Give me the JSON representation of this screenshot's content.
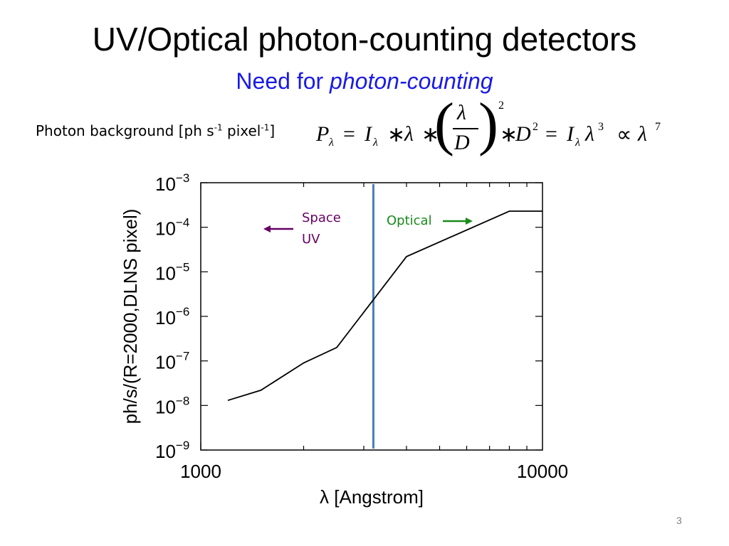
{
  "slide": {
    "title": "UV/Optical photon-counting detectors",
    "subtitle_prefix": "Need for ",
    "subtitle_emph": "photon-counting",
    "background_label": {
      "text": "Photon background [ph s",
      "sup1": "-1",
      "mid": " pixel",
      "sup2": "-1",
      "end": "]"
    },
    "formula": {
      "P": "P",
      "lambda": "λ",
      "I": "I",
      "D": "D",
      "exp2": "2",
      "exp3": "3",
      "exp7": "7",
      "eq": "=",
      "star": "∗",
      "propto": "∝"
    },
    "page_number": "3"
  },
  "colors": {
    "title": "#000000",
    "subtitle": "#1a1ae6",
    "curve": "#000000",
    "divider": "#4a7ebb",
    "space_uv": "#660066",
    "optical": "#1a8a1a"
  },
  "chart_data": {
    "type": "line",
    "title": "",
    "xlabel": "λ [Angstrom]",
    "ylabel": "ph/s/(R=2000,DLNS pixel)",
    "xscale": "log",
    "yscale": "log",
    "xlim": [
      1000,
      10000
    ],
    "ylim": [
      1e-09,
      0.001
    ],
    "x_tick_labels": [
      {
        "value": 1000,
        "label": "1000"
      },
      {
        "value": 10000,
        "label": "10000"
      }
    ],
    "y_tick_labels": [
      {
        "value": 0.001,
        "base": "10",
        "exp": "−3"
      },
      {
        "value": 0.0001,
        "base": "10",
        "exp": "−4"
      },
      {
        "value": 1e-05,
        "base": "10",
        "exp": "−5"
      },
      {
        "value": 1e-06,
        "base": "10",
        "exp": "−6"
      },
      {
        "value": 1e-07,
        "base": "10",
        "exp": "−7"
      },
      {
        "value": 1e-08,
        "base": "10",
        "exp": "−8"
      },
      {
        "value": 1e-09,
        "base": "10",
        "exp": "−9"
      }
    ],
    "series": [
      {
        "name": "photon background",
        "x": [
          1200,
          1500,
          2000,
          2500,
          4000,
          8000,
          10000
        ],
        "y": [
          1.3e-08,
          2.2e-08,
          9e-08,
          2e-07,
          2.2e-05,
          0.00023,
          0.00023
        ]
      }
    ],
    "divider_x": 3200,
    "annotations": [
      {
        "id": "space-uv",
        "lines": [
          "Space",
          "UV"
        ],
        "direction": "left"
      },
      {
        "id": "optical",
        "lines": [
          "Optical"
        ],
        "direction": "right"
      }
    ]
  }
}
